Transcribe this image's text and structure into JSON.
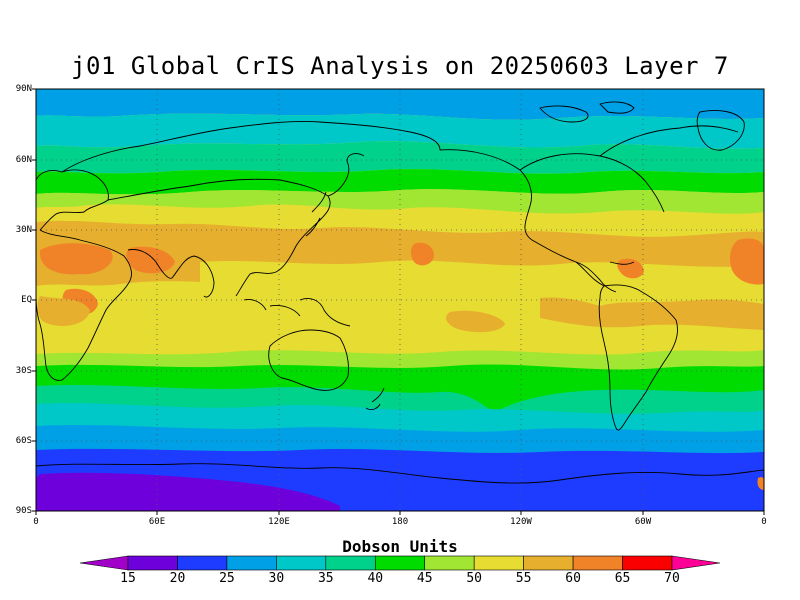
{
  "title": "j01 Global CrIS Analysis on 20250603 Layer 7",
  "lat_labels": [
    "90N",
    "60N",
    "30N",
    "EQ",
    "30S",
    "60S",
    "90S"
  ],
  "lon_labels": [
    "0",
    "60E",
    "120E",
    "180",
    "120W",
    "60W",
    "0"
  ],
  "colorbar": {
    "title": "Dobson Units",
    "levels": [
      "15",
      "20",
      "25",
      "30",
      "35",
      "40",
      "45",
      "50",
      "55",
      "60",
      "65",
      "70"
    ],
    "colors": [
      "#a000c8",
      "#6e00dc",
      "#1e3cff",
      "#00a0e6",
      "#00c8c8",
      "#00d28c",
      "#00dc00",
      "#a0e632",
      "#e6dc32",
      "#e6af2d",
      "#f08228",
      "#fa0000",
      "#ff0096"
    ]
  },
  "map_background": "#e6dc32",
  "zonal_bands": [
    {
      "from_lat": 90,
      "to_lat": 80,
      "du_range": "25-30"
    },
    {
      "from_lat": 80,
      "to_lat": 70,
      "du_range": "30-35"
    },
    {
      "from_lat": 70,
      "to_lat": 60,
      "du_range": "35-40"
    },
    {
      "from_lat": 60,
      "to_lat": 50,
      "du_range": "40-45"
    },
    {
      "from_lat": 50,
      "to_lat": 40,
      "du_range": "45-50"
    },
    {
      "from_lat": 40,
      "to_lat": -20,
      "du_range": "50-55"
    },
    {
      "from_lat": -20,
      "to_lat": -30,
      "du_range": "45-50"
    },
    {
      "from_lat": -30,
      "to_lat": -40,
      "du_range": "40-45"
    },
    {
      "from_lat": -40,
      "to_lat": -50,
      "du_range": "35-40"
    },
    {
      "from_lat": -50,
      "to_lat": -60,
      "du_range": "30-35"
    },
    {
      "from_lat": -60,
      "to_lat": -70,
      "du_range": "25-30"
    },
    {
      "from_lat": -70,
      "to_lat": -90,
      "du_range": "20-25"
    }
  ]
}
